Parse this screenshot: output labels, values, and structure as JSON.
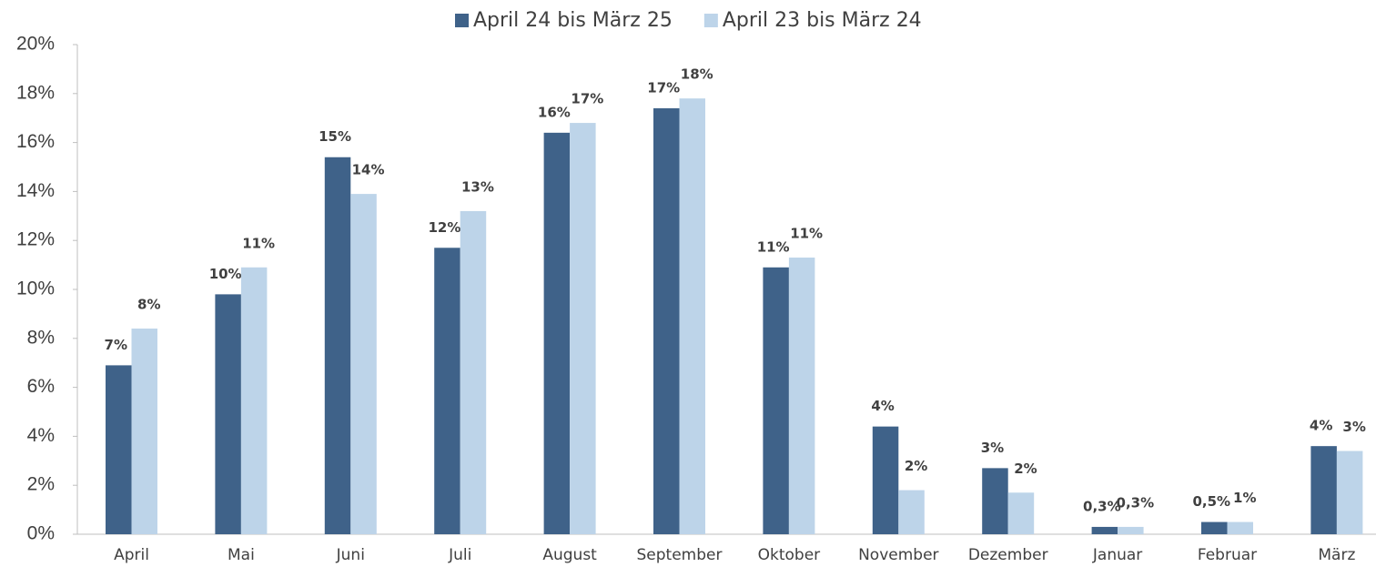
{
  "chart_data": {
    "type": "bar",
    "categories": [
      "April",
      "Mai",
      "Juni",
      "Juli",
      "August",
      "September",
      "Oktober",
      "November",
      "Dezember",
      "Januar",
      "Februar",
      "März"
    ],
    "series": [
      {
        "name": "April 24 bis März 25",
        "color": "#3f6289",
        "values": [
          6.9,
          9.8,
          15.4,
          11.7,
          16.4,
          17.4,
          10.9,
          4.4,
          2.7,
          0.3,
          0.5,
          3.6
        ],
        "value_labels": [
          "7%",
          "10%",
          "15%",
          "12%",
          "16%",
          "17%",
          "11%",
          "4%",
          "3%",
          "0,3%",
          "0,5%",
          "4%"
        ]
      },
      {
        "name": "April 23 bis März 24",
        "color": "#bdd4e9",
        "values": [
          8.4,
          10.9,
          13.9,
          13.2,
          16.8,
          17.8,
          11.3,
          1.8,
          1.7,
          0.3,
          0.5,
          3.4
        ],
        "value_labels": [
          "8%",
          "11%",
          "14%",
          "13%",
          "17%",
          "18%",
          "11%",
          "2%",
          "2%",
          "0,3%",
          "1%",
          "3%"
        ]
      }
    ],
    "ylim": [
      0,
      20
    ],
    "yticks": [
      {
        "value": 0,
        "label": "0%"
      },
      {
        "value": 2,
        "label": "2%"
      },
      {
        "value": 4,
        "label": "4%"
      },
      {
        "value": 6,
        "label": "6%"
      },
      {
        "value": 8,
        "label": "8%"
      },
      {
        "value": 10,
        "label": "10%"
      },
      {
        "value": 12,
        "label": "12%"
      },
      {
        "value": 14,
        "label": "14%"
      },
      {
        "value": 16,
        "label": "16%"
      },
      {
        "value": 18,
        "label": "18%"
      },
      {
        "value": 20,
        "label": "20%"
      }
    ],
    "grid": false,
    "legend": "top"
  }
}
